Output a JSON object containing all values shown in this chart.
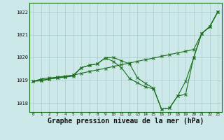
{
  "bg_color": "#cce8e8",
  "grid_color": "#aacccc",
  "line_color": "#1a6e1a",
  "xlabel": "Graphe pression niveau de la mer (hPa)",
  "xlabel_fontsize": 7.0,
  "ylabel_ticks": [
    1018,
    1019,
    1020,
    1021,
    1022
  ],
  "xlim": [
    -0.5,
    23.5
  ],
  "ylim": [
    1017.6,
    1022.4
  ],
  "line1_x": [
    0,
    1,
    2,
    3,
    4,
    5,
    6,
    7,
    8,
    9,
    10,
    11,
    12,
    13,
    14,
    15,
    16,
    17,
    18,
    19,
    20,
    21,
    22,
    23
  ],
  "line1_y": [
    1018.95,
    1018.97,
    1019.05,
    1019.1,
    1019.15,
    1019.22,
    1019.3,
    1019.38,
    1019.45,
    1019.52,
    1019.6,
    1019.68,
    1019.75,
    1019.83,
    1019.9,
    1019.97,
    1020.05,
    1020.12,
    1020.2,
    1020.27,
    1020.35,
    1021.05,
    1021.35,
    1022.0
  ],
  "line2_x": [
    0,
    1,
    2,
    3,
    4,
    5,
    6,
    7,
    8,
    9,
    10,
    11,
    12,
    13,
    14,
    15,
    16,
    17,
    18,
    19,
    20,
    21,
    22,
    23
  ],
  "line2_y": [
    1018.95,
    1019.05,
    1019.1,
    1019.13,
    1019.18,
    1019.22,
    1019.55,
    1019.65,
    1019.72,
    1019.98,
    1020.0,
    1019.85,
    1019.72,
    1019.1,
    1018.85,
    1018.65,
    1017.72,
    1017.78,
    1018.3,
    1018.38,
    1020.0,
    1021.05,
    1021.35,
    1022.0
  ],
  "line3_x": [
    0,
    1,
    2,
    3,
    4,
    5,
    6,
    7,
    8,
    9,
    10,
    11,
    12,
    13,
    14,
    15,
    16,
    17,
    18,
    19,
    20,
    21,
    22,
    23
  ],
  "line3_y": [
    1018.95,
    1019.0,
    1019.05,
    1019.1,
    1019.13,
    1019.18,
    1019.55,
    1019.65,
    1019.72,
    1019.98,
    1019.82,
    1019.55,
    1019.08,
    1018.88,
    1018.7,
    1018.62,
    1017.72,
    1017.78,
    1018.3,
    1018.95,
    1019.98,
    1021.05,
    1021.35,
    1022.0
  ]
}
